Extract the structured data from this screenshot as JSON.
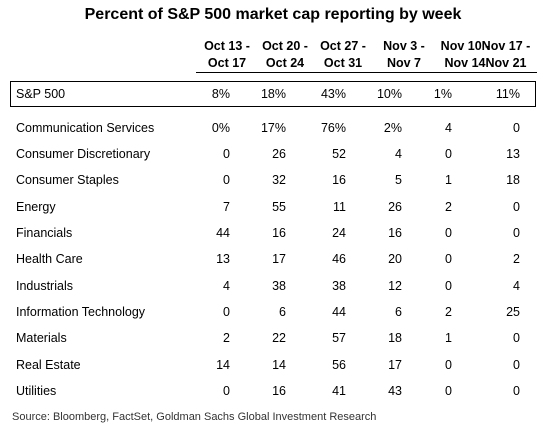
{
  "title": "Percent of S&P 500 market cap reporting by week",
  "source": "Source: Bloomberg, FactSet, Goldman Sachs Global Investment Research",
  "chart_data": {
    "type": "table",
    "columns": [
      {
        "line1": "Oct 13 -",
        "line2": "Oct 17"
      },
      {
        "line1": "Oct 20 -",
        "line2": "Oct 24"
      },
      {
        "line1": "Oct 27 -",
        "line2": "Oct 31"
      },
      {
        "line1": "Nov 3 -",
        "line2": "Nov 7"
      },
      {
        "line1": "Nov 10 -",
        "line2": "Nov 14"
      },
      {
        "line1": "Nov 17 -",
        "line2": "Nov 21"
      }
    ],
    "rows": [
      {
        "label": "S&P 500",
        "values": [
          "8%",
          "18%",
          "43%",
          "10%",
          "1%",
          "11%"
        ]
      },
      {
        "label": "Communication Services",
        "values": [
          "0%",
          "17%",
          "76%",
          "2%",
          "4",
          "0"
        ]
      },
      {
        "label": "Consumer Discretionary",
        "values": [
          "0",
          "26",
          "52",
          "4",
          "0",
          "13"
        ]
      },
      {
        "label": "Consumer Staples",
        "values": [
          "0",
          "32",
          "16",
          "5",
          "1",
          "18"
        ]
      },
      {
        "label": "Energy",
        "values": [
          "7",
          "55",
          "11",
          "26",
          "2",
          "0"
        ]
      },
      {
        "label": "Financials",
        "values": [
          "44",
          "16",
          "24",
          "16",
          "0",
          "0"
        ]
      },
      {
        "label": "Health Care",
        "values": [
          "13",
          "17",
          "46",
          "20",
          "0",
          "2"
        ]
      },
      {
        "label": "Industrials",
        "values": [
          "4",
          "38",
          "38",
          "12",
          "0",
          "4"
        ]
      },
      {
        "label": "Information Technology",
        "values": [
          "0",
          "6",
          "44",
          "6",
          "2",
          "25"
        ]
      },
      {
        "label": "Materials",
        "values": [
          "2",
          "22",
          "57",
          "18",
          "1",
          "0"
        ]
      },
      {
        "label": "Real Estate",
        "values": [
          "14",
          "14",
          "56",
          "17",
          "0",
          "0"
        ]
      },
      {
        "label": "Utilities",
        "values": [
          "0",
          "16",
          "41",
          "43",
          "0",
          "0"
        ]
      }
    ]
  }
}
